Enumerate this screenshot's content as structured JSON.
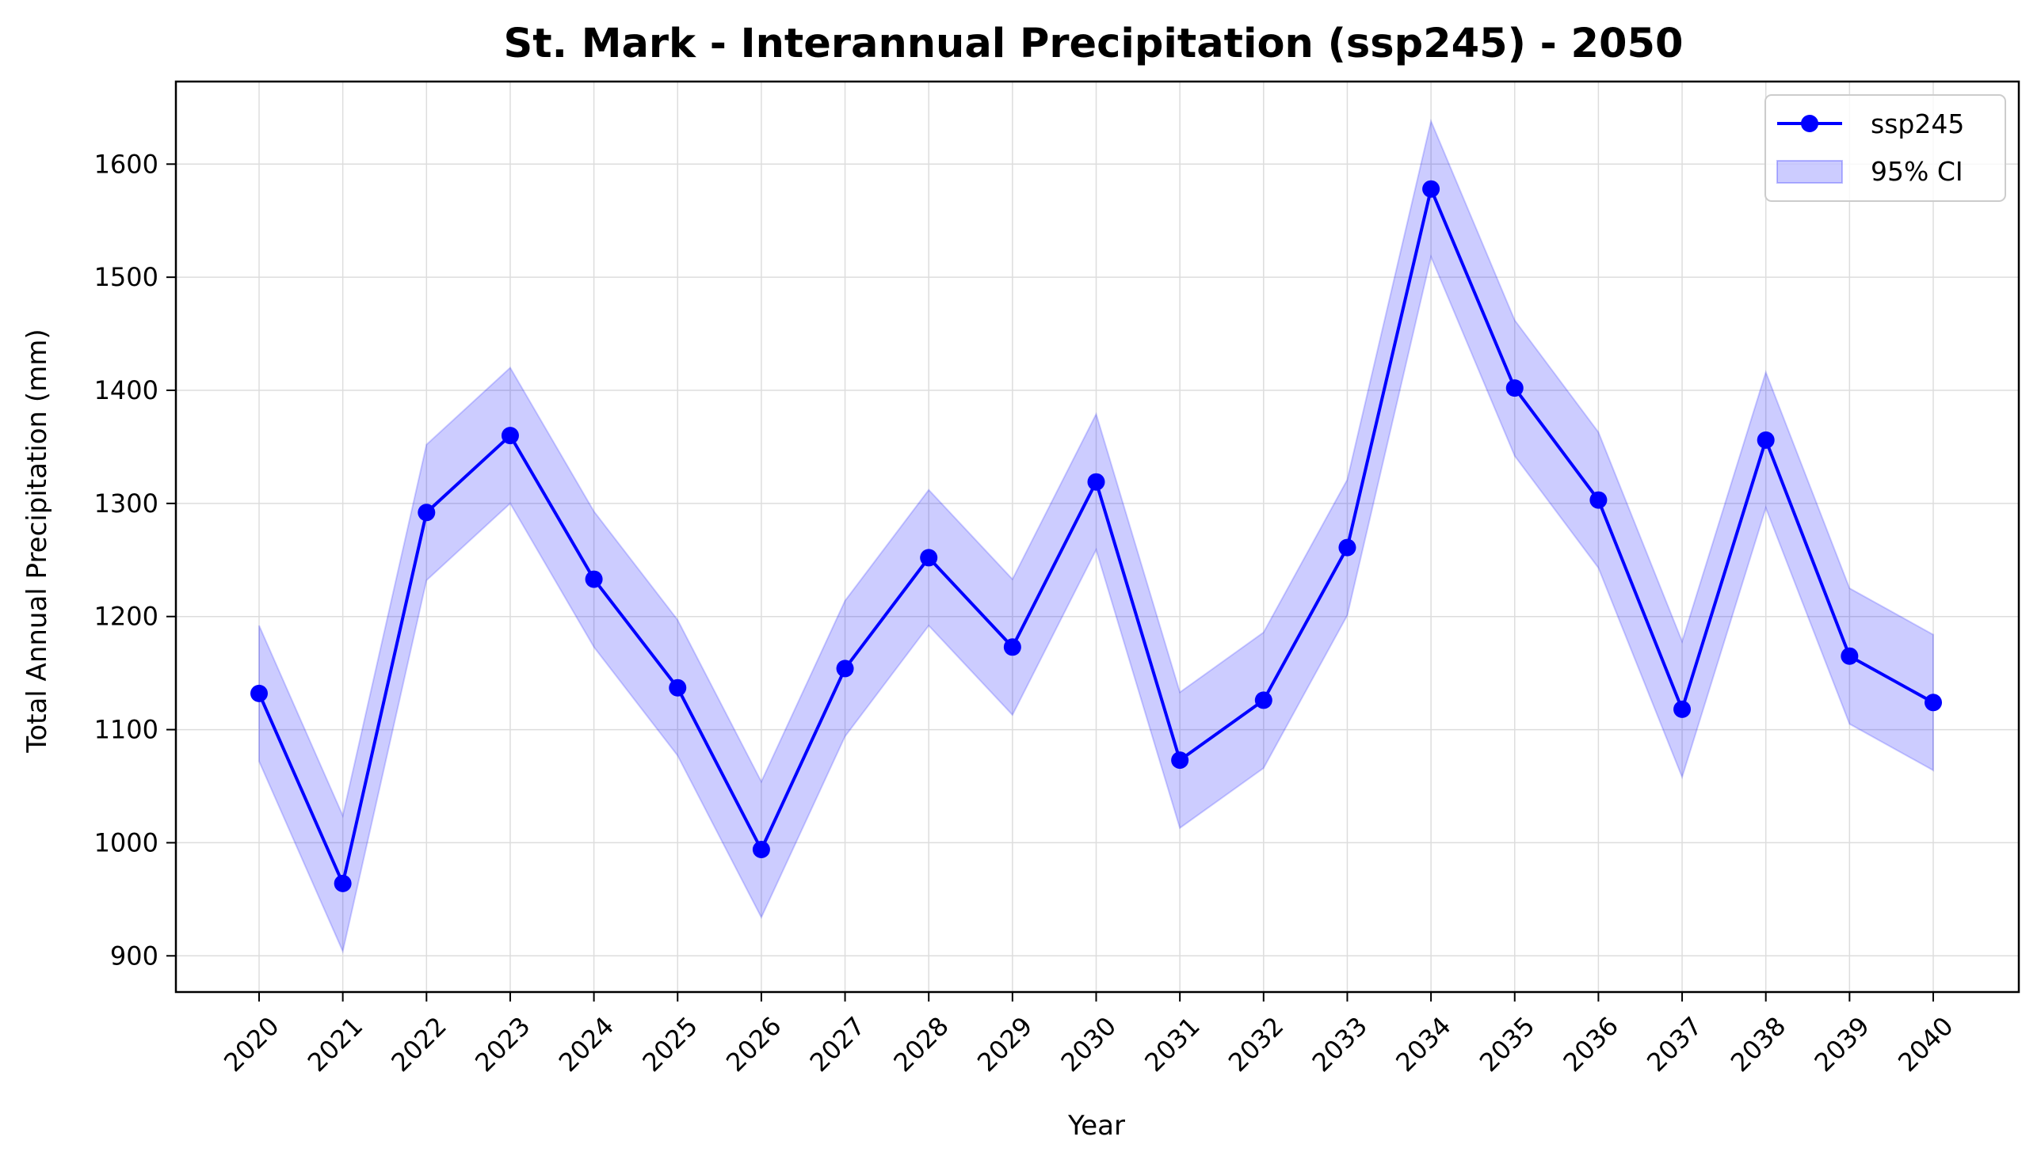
{
  "chart_data": {
    "type": "line",
    "title": "St. Mark - Interannual Precipitation (ssp245) - 2050",
    "xlabel": "Year",
    "ylabel": "Total Annual Precipitation (mm)",
    "categories": [
      "2020",
      "2021",
      "2022",
      "2023",
      "2024",
      "2025",
      "2026",
      "2027",
      "2028",
      "2029",
      "2030",
      "2031",
      "2032",
      "2033",
      "2034",
      "2035",
      "2036",
      "2037",
      "2038",
      "2039",
      "2040"
    ],
    "series": [
      {
        "name": "ssp245",
        "color": "#0000ff",
        "values": [
          1132,
          964,
          1292,
          1360,
          1233,
          1137,
          994,
          1154,
          1252,
          1173,
          1319,
          1073,
          1126,
          1261,
          1578,
          1402,
          1303,
          1118,
          1356,
          1165,
          1124
        ]
      }
    ],
    "ci": {
      "name": "95% CI",
      "color": "#0000ff",
      "lower": [
        1072,
        904,
        1232,
        1300,
        1173,
        1077,
        934,
        1094,
        1192,
        1113,
        1259,
        1013,
        1066,
        1201,
        1518,
        1342,
        1243,
        1058,
        1296,
        1105,
        1064
      ],
      "upper": [
        1192,
        1024,
        1352,
        1420,
        1293,
        1197,
        1054,
        1214,
        1312,
        1233,
        1379,
        1133,
        1186,
        1321,
        1638,
        1462,
        1363,
        1178,
        1416,
        1225,
        1184
      ]
    },
    "ylim": [
      868,
      1673
    ],
    "yticks": [
      900,
      1000,
      1100,
      1200,
      1300,
      1400,
      1500,
      1600
    ],
    "grid": true,
    "legend_position": "top-right"
  }
}
